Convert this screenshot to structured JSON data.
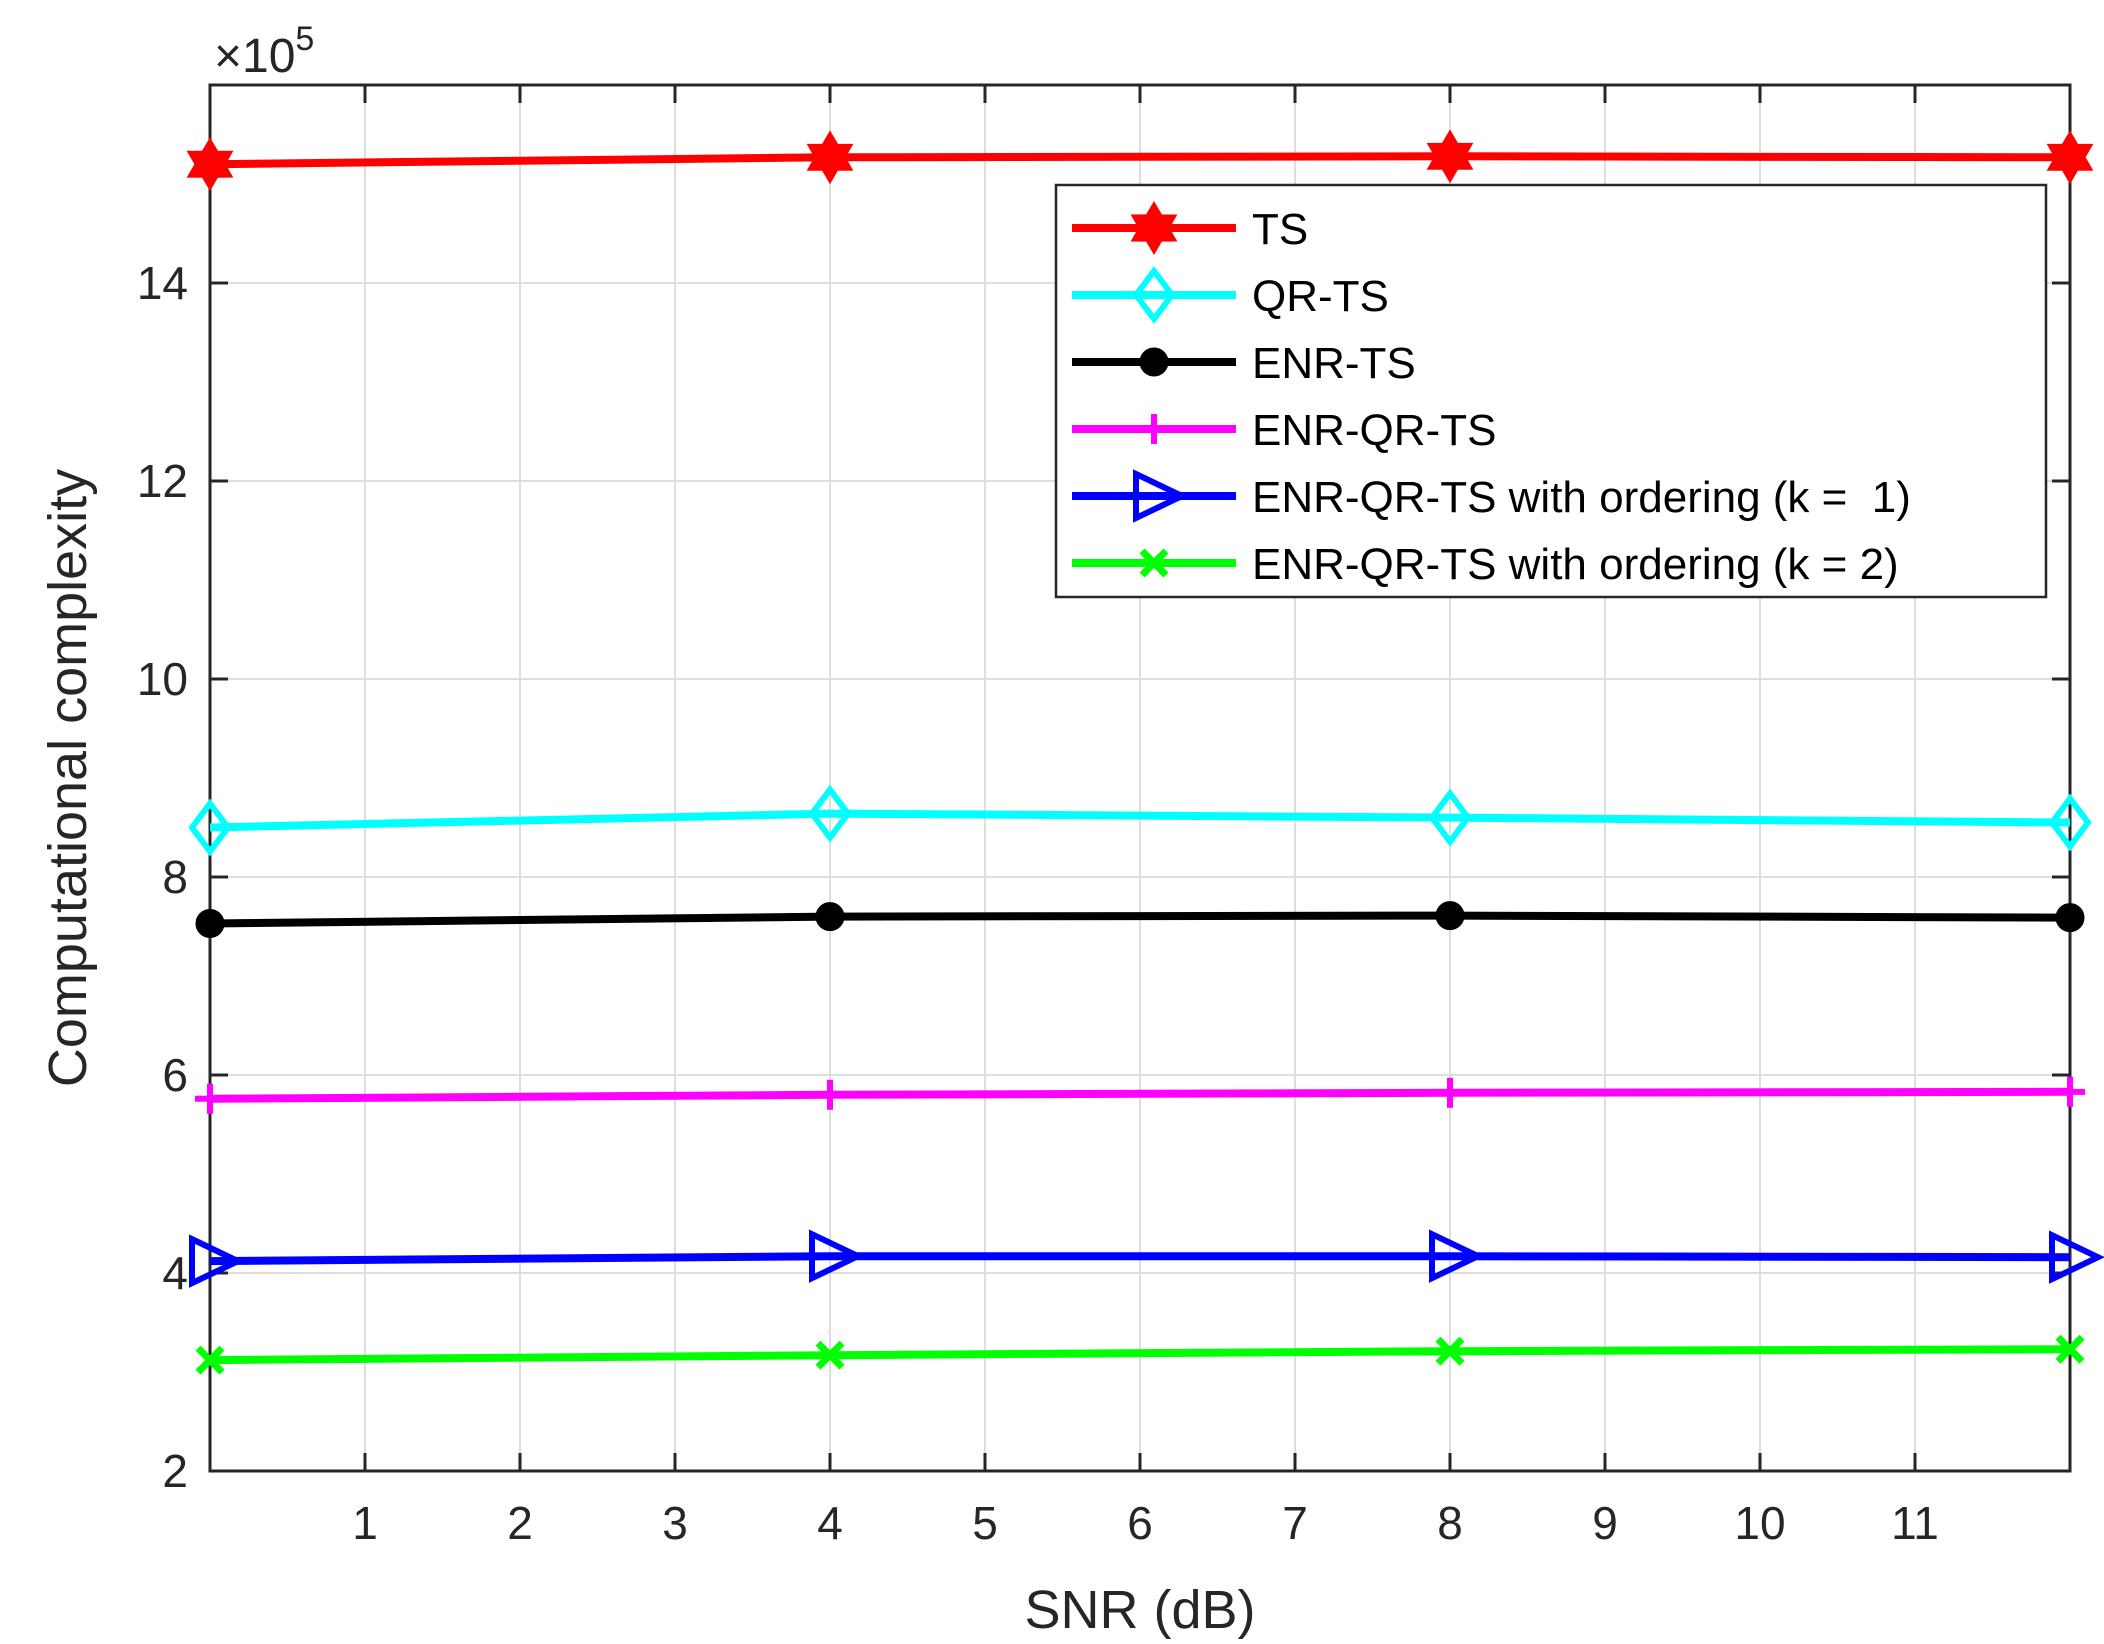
{
  "chart_data": {
    "type": "line",
    "title": "",
    "xlabel": "SNR (dB)",
    "ylabel": "Computational complexity",
    "xlim": [
      0,
      12
    ],
    "ylim": [
      2,
      16
    ],
    "y_exponent_label": "×10",
    "y_exponent_power": "5",
    "grid": true,
    "legend_position": "top-right",
    "x_ticks": [
      1,
      2,
      3,
      4,
      5,
      6,
      7,
      8,
      9,
      10,
      11
    ],
    "x_tick_labels": [
      "1",
      "2",
      "3",
      "4",
      "5",
      "6",
      "7",
      "8",
      "9",
      "10",
      "11"
    ],
    "y_ticks": [
      2,
      4,
      6,
      8,
      10,
      12,
      14
    ],
    "y_tick_labels": [
      "2",
      "4",
      "6",
      "8",
      "10",
      "12",
      "14"
    ],
    "x": [
      0,
      4,
      8,
      12
    ],
    "series": [
      {
        "name": "TS",
        "color": "#ff0000",
        "marker": "hexagram",
        "values": [
          15.2,
          15.27,
          15.28,
          15.27
        ]
      },
      {
        "name": "QR-TS",
        "color": "#00ffff",
        "marker": "diamond",
        "values": [
          8.5,
          8.64,
          8.6,
          8.55
        ]
      },
      {
        "name": "ENR-TS",
        "color": "#000000",
        "marker": "circle",
        "values": [
          7.53,
          7.6,
          7.61,
          7.59
        ]
      },
      {
        "name": "ENR-QR-TS",
        "color": "#ff00ff",
        "marker": "plus",
        "values": [
          5.76,
          5.8,
          5.82,
          5.83
        ]
      },
      {
        "name": "ENR-QR-TS with ordering (k =  1)",
        "color": "#0000ff",
        "marker": "triangle-right",
        "values": [
          4.12,
          4.17,
          4.17,
          4.16
        ]
      },
      {
        "name": "ENR-QR-TS with ordering (k = 2)",
        "color": "#00ff00",
        "marker": "x",
        "values": [
          3.12,
          3.17,
          3.21,
          3.23
        ]
      }
    ]
  }
}
